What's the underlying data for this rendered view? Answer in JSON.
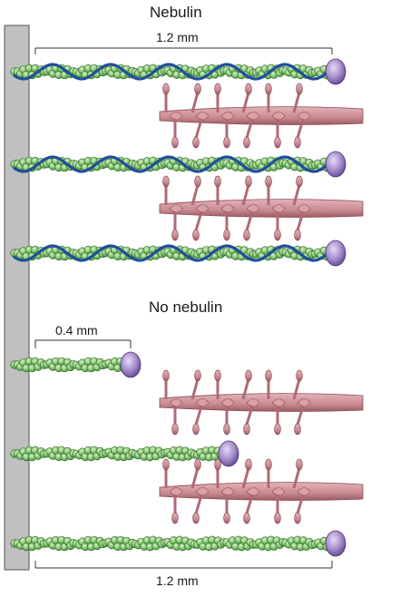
{
  "sections": {
    "top_title": "Nebulin",
    "bottom_title": "No nebulin"
  },
  "measurements": {
    "top_length": "1.2 mm",
    "short_length": "0.4 mm",
    "bottom_length": "1.2 mm"
  },
  "colors": {
    "z_disc": "#c0c0c0",
    "actin_bead": "#7fbf6a",
    "actin_bead_dark": "#3f8a3a",
    "nebulin": "#1f4f9a",
    "cap": "#9a7fc4",
    "myosin": "#c98a92",
    "myosin_dark": "#8a4a52"
  }
}
